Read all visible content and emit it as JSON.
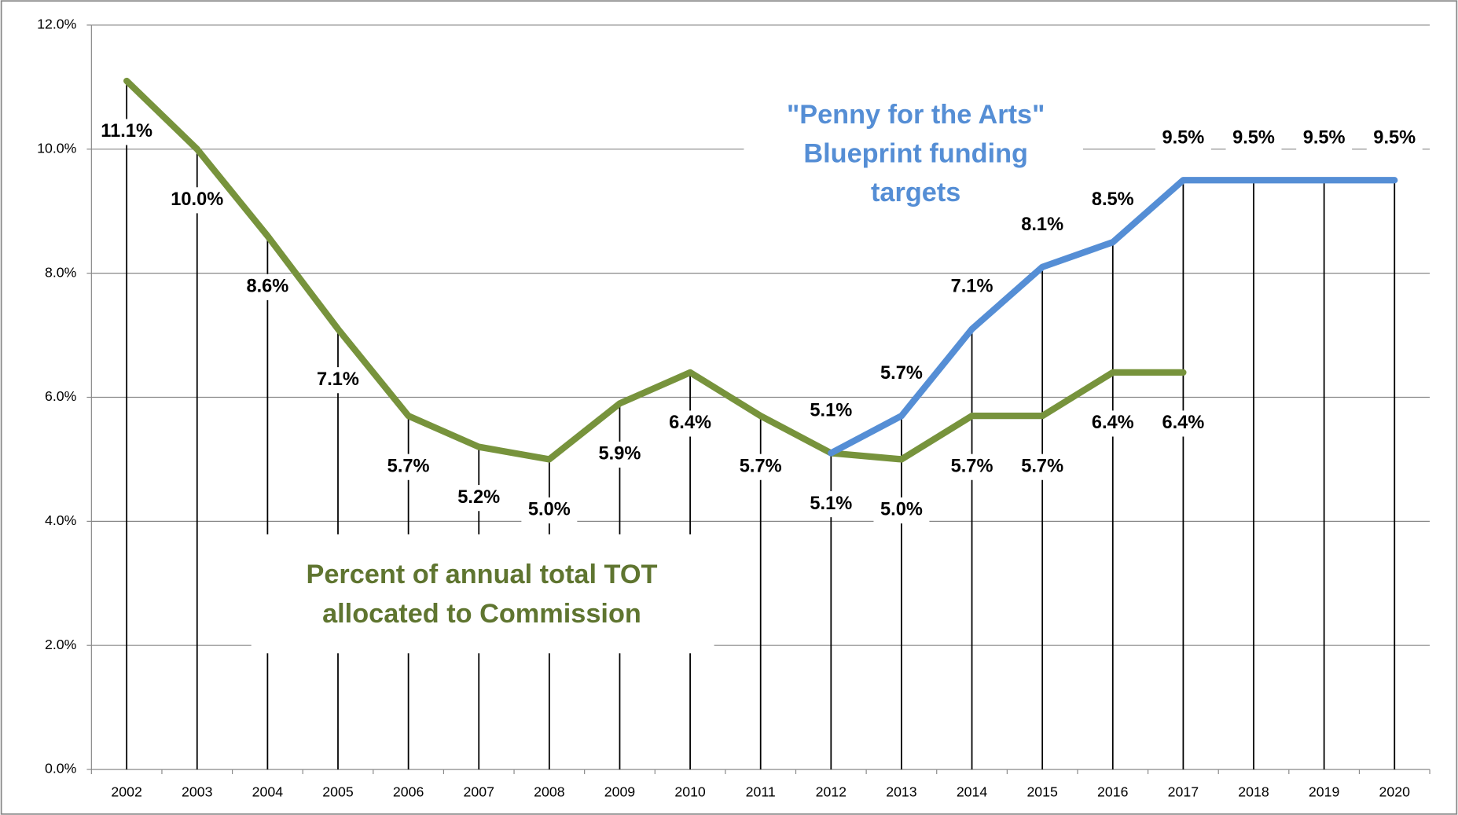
{
  "chart_data": {
    "type": "line",
    "categories": [
      "2002",
      "2003",
      "2004",
      "2005",
      "2006",
      "2007",
      "2008",
      "2009",
      "2010",
      "2011",
      "2012",
      "2013",
      "2014",
      "2015",
      "2016",
      "2017",
      "2018",
      "2019",
      "2020"
    ],
    "series": [
      {
        "name": "Percent of annual total TOT allocated to Commission",
        "color": "#77933c",
        "values": [
          11.1,
          10.0,
          8.6,
          7.1,
          5.7,
          5.2,
          5.0,
          5.9,
          6.4,
          5.7,
          5.1,
          5.0,
          5.7,
          5.7,
          6.4,
          6.4,
          null,
          null,
          null
        ],
        "value_labels": [
          "11.1%",
          "10.0%",
          "8.6%",
          "7.1%",
          "5.7%",
          "5.2%",
          "5.0%",
          "5.9%",
          "6.4%",
          "5.7%",
          "5.1%",
          "5.0%",
          "5.7%",
          "5.7%",
          "6.4%",
          "6.4%",
          null,
          null,
          null
        ]
      },
      {
        "name": "\"Penny for the Arts\" Blueprint funding targets",
        "color": "#558ed5",
        "values": [
          null,
          null,
          null,
          null,
          null,
          null,
          null,
          null,
          null,
          null,
          5.1,
          5.7,
          7.1,
          8.1,
          8.5,
          9.5,
          9.5,
          9.5,
          9.5
        ],
        "value_labels": [
          null,
          null,
          null,
          null,
          null,
          null,
          null,
          null,
          null,
          null,
          "5.1%",
          "5.7%",
          "7.1%",
          "8.1%",
          "8.5%",
          "9.5%",
          "9.5%",
          "9.5%",
          "9.5%"
        ]
      }
    ],
    "annotations": [
      {
        "lines": [
          "\"Penny for the Arts\"",
          "Blueprint funding",
          "targets"
        ],
        "color": "#558ed5"
      },
      {
        "lines": [
          "Percent of annual total TOT",
          "allocated to Commission"
        ],
        "color": "#5f7530"
      }
    ],
    "ylim": [
      0,
      12
    ],
    "yticks": [
      {
        "value": 0,
        "label": "0.0%"
      },
      {
        "value": 2,
        "label": "2.0%"
      },
      {
        "value": 4,
        "label": "4.0%"
      },
      {
        "value": 6,
        "label": "6.0%"
      },
      {
        "value": 8,
        "label": "8.0%"
      },
      {
        "value": 10,
        "label": "10.0%"
      },
      {
        "value": 12,
        "label": "12.0%"
      }
    ],
    "grid": true,
    "drop_lines": true
  }
}
